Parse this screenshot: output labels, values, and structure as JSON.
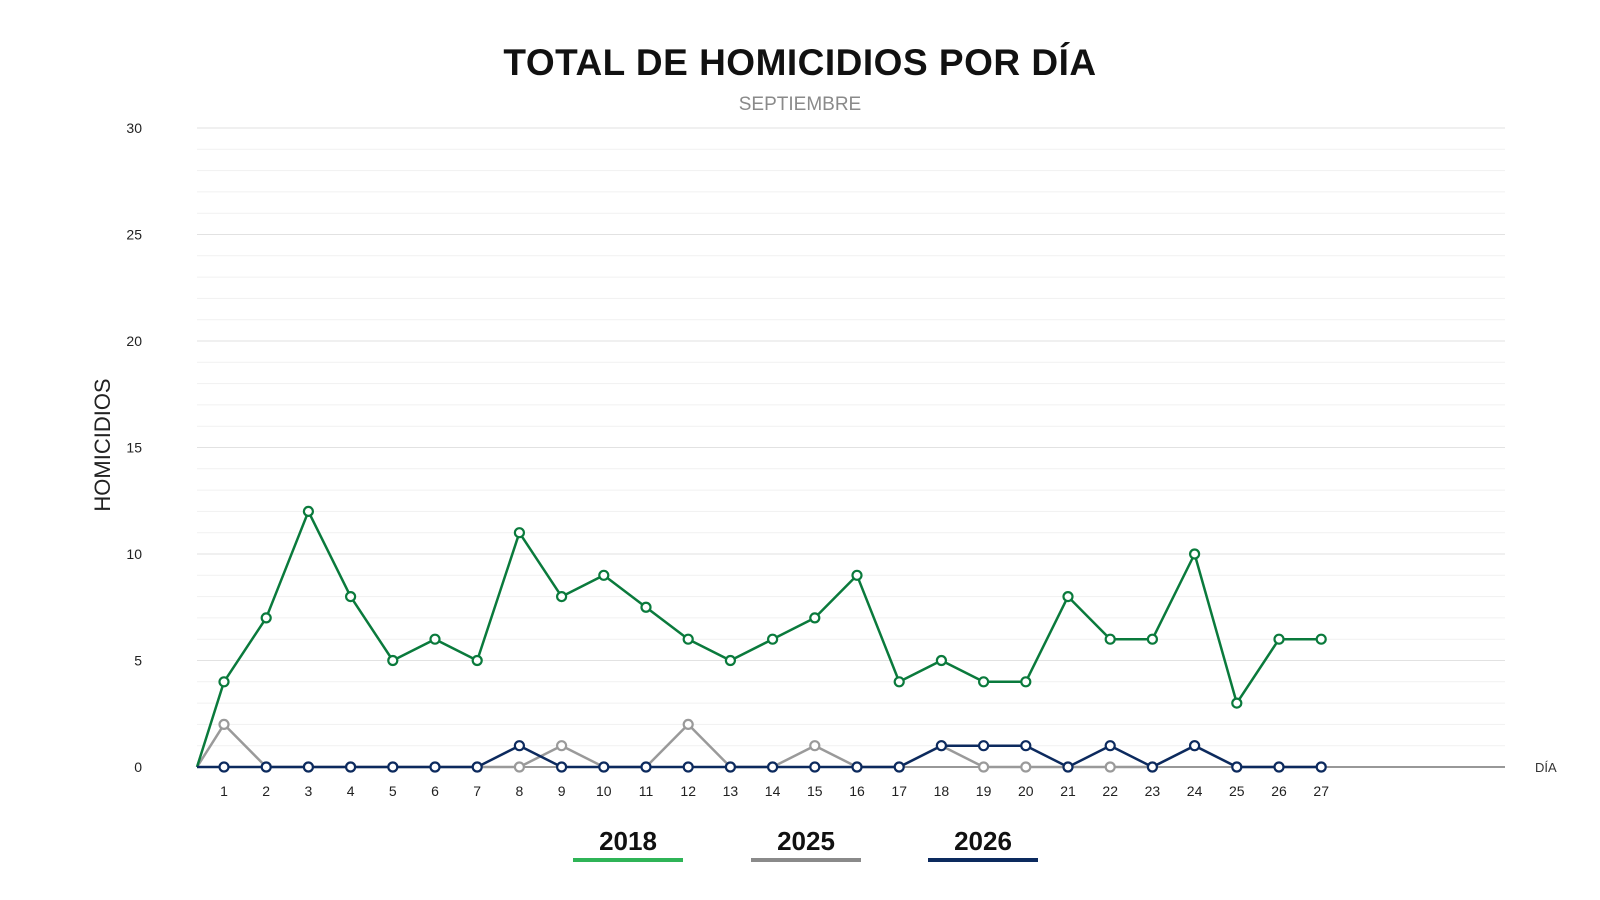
{
  "chart_data": {
    "type": "line",
    "title": "TOTAL DE HOMICIDIOS POR DÍA",
    "subtitle": "SEPTIEMBRE",
    "ylabel": "HOMICIDIOS",
    "xlabel": "DÍA",
    "ylim": [
      0,
      30
    ],
    "yticks": [
      "0",
      "5",
      "10",
      "15",
      "20",
      "25",
      "30"
    ],
    "grid": true,
    "legend_position": "bottom",
    "categories": [
      "1",
      "2",
      "3",
      "4",
      "5",
      "6",
      "7",
      "8",
      "9",
      "10",
      "11",
      "12",
      "13",
      "14",
      "15",
      "16",
      "17",
      "18",
      "19",
      "20",
      "21",
      "22",
      "23",
      "24",
      "25",
      "26",
      "27"
    ],
    "series": [
      {
        "name": "2018",
        "color": "#0a7a3c",
        "legend_color": "#2fb457",
        "values": [
          4,
          7,
          12,
          8,
          5,
          6,
          5,
          11,
          8,
          9,
          7.5,
          6,
          5,
          6,
          7,
          9,
          4,
          5,
          4,
          4,
          8,
          6,
          6,
          10,
          3,
          6,
          6
        ]
      },
      {
        "name": "2025",
        "color": "#9a9a9a",
        "legend_color": "#8a8a8a",
        "values": [
          2,
          0,
          0,
          0,
          0,
          0,
          0,
          0,
          1,
          0,
          0,
          2,
          0,
          0,
          1,
          0,
          0,
          1,
          0,
          0,
          0,
          0,
          0,
          1,
          0,
          0,
          0
        ]
      },
      {
        "name": "2026",
        "color": "#0c2a5e",
        "legend_color": "#0c2a5e",
        "values": [
          0,
          0,
          0,
          0,
          0,
          0,
          0,
          1,
          0,
          0,
          0,
          0,
          0,
          0,
          0,
          0,
          0,
          1,
          1,
          1,
          0,
          1,
          0,
          1,
          0,
          0,
          0
        ]
      }
    ]
  }
}
